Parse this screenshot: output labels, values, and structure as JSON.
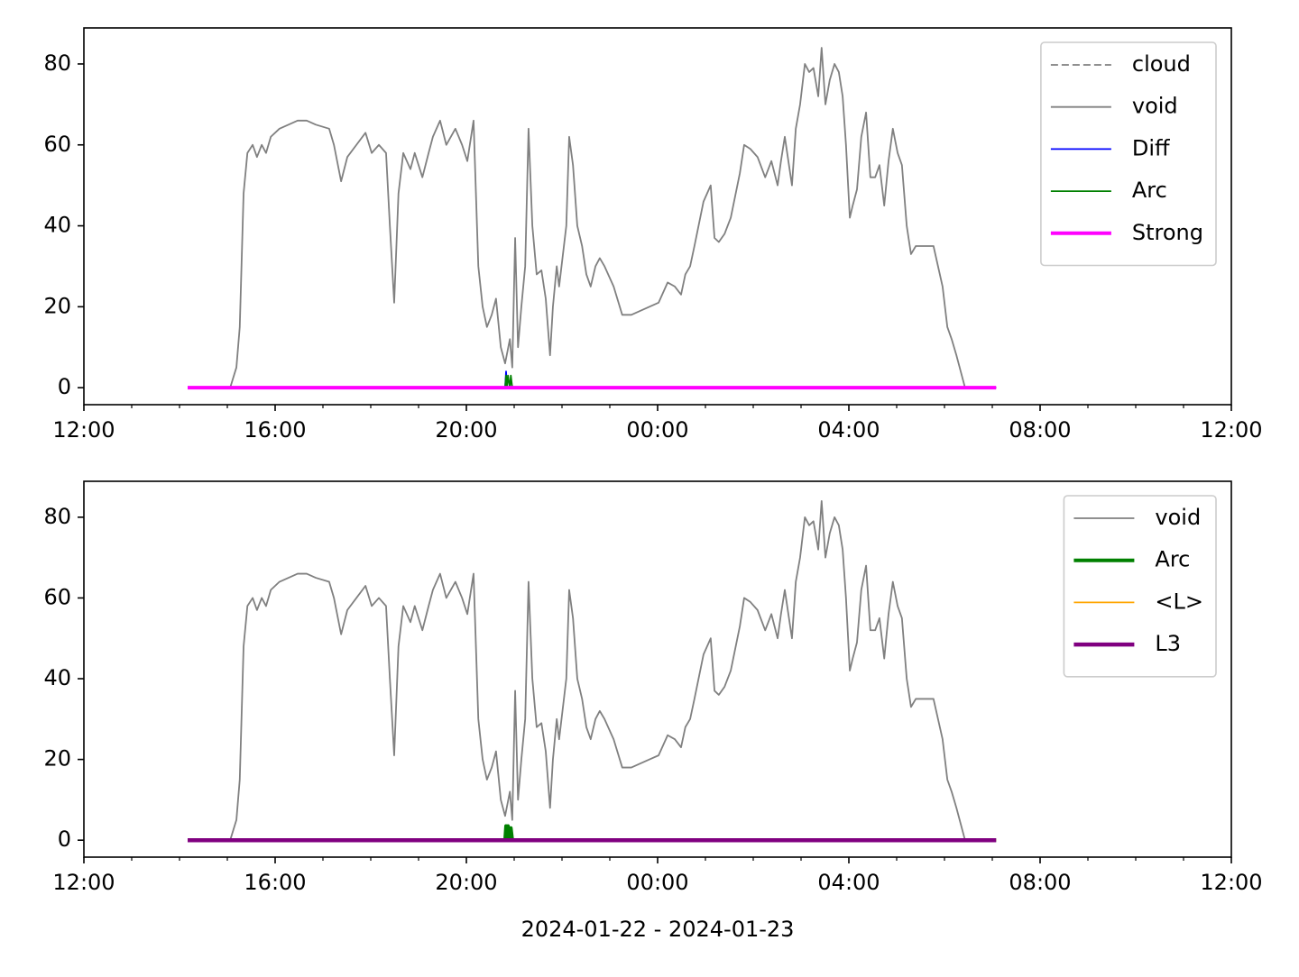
{
  "chart_data": [
    {
      "type": "line",
      "legend": "upper right",
      "xlim": [
        0,
        24
      ],
      "ylim": [
        -4.2,
        88.9
      ],
      "xticks": [
        {
          "value": 0,
          "label": "12:00"
        },
        {
          "value": 4,
          "label": "16:00"
        },
        {
          "value": 8,
          "label": "20:00"
        },
        {
          "value": 12,
          "label": "00:00"
        },
        {
          "value": 16,
          "label": "04:00"
        },
        {
          "value": 20,
          "label": "08:00"
        },
        {
          "value": 24,
          "label": "12:00"
        }
      ],
      "xminorticks": [
        1,
        2,
        3,
        5,
        6,
        7,
        9,
        10,
        11,
        13,
        14,
        15,
        17,
        18,
        19,
        21,
        22,
        23
      ],
      "yticks": [
        0,
        20,
        40,
        60,
        80
      ],
      "series": [
        {
          "name": "cloud",
          "color": "#808080",
          "dashed": true,
          "width": 1.8,
          "x": [],
          "values": []
        },
        {
          "name": "void",
          "color": "#808080",
          "width": 1.8,
          "x": [
            3.06,
            3.19,
            3.26,
            3.34,
            3.42,
            3.53,
            3.62,
            3.72,
            3.81,
            3.91,
            4.09,
            4.28,
            4.47,
            4.66,
            4.85,
            5.13,
            5.23,
            5.38,
            5.51,
            5.7,
            5.89,
            6.02,
            6.17,
            6.32,
            6.4,
            6.49,
            6.58,
            6.68,
            6.83,
            6.92,
            7.08,
            7.21,
            7.3,
            7.45,
            7.58,
            7.77,
            7.91,
            8.02,
            8.15,
            8.25,
            8.34,
            8.43,
            8.53,
            8.62,
            8.72,
            8.81,
            8.91,
            8.96,
            9.02,
            9.08,
            9.15,
            9.23,
            9.3,
            9.38,
            9.47,
            9.57,
            9.66,
            9.75,
            9.81,
            9.89,
            9.94,
            10.04,
            10.09,
            10.15,
            10.23,
            10.32,
            10.42,
            10.51,
            10.6,
            10.7,
            10.79,
            10.89,
            11.08,
            11.26,
            11.45,
            11.64,
            11.83,
            12.02,
            12.21,
            12.36,
            12.49,
            12.58,
            12.68,
            12.77,
            12.96,
            13.11,
            13.19,
            13.28,
            13.4,
            13.53,
            13.72,
            13.81,
            13.94,
            14.09,
            14.25,
            14.38,
            14.51,
            14.58,
            14.66,
            14.81,
            14.89,
            14.98,
            15.08,
            15.17,
            15.26,
            15.36,
            15.43,
            15.51,
            15.6,
            15.7,
            15.79,
            15.87,
            15.94,
            16.02,
            16.08,
            16.17,
            16.26,
            16.36,
            16.45,
            16.55,
            16.64,
            16.74,
            16.83,
            16.92,
            17.02,
            17.11,
            17.21,
            17.3,
            17.4,
            17.58,
            17.77,
            17.96,
            18.06,
            18.15,
            18.25,
            18.34,
            18.43
          ],
          "values": [
            0,
            5,
            15,
            48,
            58,
            60,
            57,
            60,
            58,
            62,
            64,
            65,
            66,
            66,
            65,
            64,
            60,
            51,
            57,
            60,
            63,
            58,
            60,
            58,
            40,
            21,
            48,
            58,
            54,
            58,
            52,
            58,
            62,
            66,
            60,
            64,
            60,
            56,
            66,
            30,
            20,
            15,
            18,
            22,
            10,
            6,
            12,
            5,
            37,
            10,
            20,
            30,
            64,
            40,
            28,
            29,
            22,
            8,
            20,
            30,
            25,
            35,
            40,
            62,
            55,
            40,
            35,
            28,
            25,
            30,
            32,
            30,
            25,
            18,
            18,
            19,
            20,
            21,
            26,
            25,
            23,
            28,
            30,
            35,
            46,
            50,
            37,
            36,
            38,
            42,
            53,
            60,
            59,
            57,
            52,
            56,
            50,
            56,
            62,
            50,
            64,
            70,
            80,
            78,
            79,
            72,
            84,
            70,
            76,
            80,
            78,
            72,
            60,
            42,
            45,
            49,
            62,
            68,
            52,
            52,
            55,
            45,
            56,
            64,
            58,
            55,
            40,
            33,
            35,
            35,
            35,
            25,
            15,
            12,
            8,
            4,
            0
          ]
        },
        {
          "name": "Diff",
          "color": "#0000ff",
          "width": 1.8,
          "x": [
            2.17,
            8.81,
            8.83,
            8.85,
            19.08
          ],
          "values": [
            0,
            0,
            4,
            0,
            0
          ]
        },
        {
          "name": "Arc",
          "color": "#008000",
          "width": 1.8,
          "x": [
            2.17,
            8.81,
            8.83,
            8.85,
            8.87,
            8.91,
            8.93,
            8.96,
            19.08
          ],
          "values": [
            0,
            0,
            3,
            0,
            3,
            0,
            3,
            0,
            0
          ]
        },
        {
          "name": "Strong",
          "color": "#ff00ff",
          "width": 4,
          "x": [
            2.17,
            19.08
          ],
          "values": [
            0,
            0
          ]
        }
      ]
    },
    {
      "type": "line",
      "legend": "upper right",
      "xlabel": "2024-01-22 - 2024-01-23",
      "xlim": [
        0,
        24
      ],
      "ylim": [
        -4.2,
        88.9
      ],
      "xticks": [
        {
          "value": 0,
          "label": "12:00"
        },
        {
          "value": 4,
          "label": "16:00"
        },
        {
          "value": 8,
          "label": "20:00"
        },
        {
          "value": 12,
          "label": "00:00"
        },
        {
          "value": 16,
          "label": "04:00"
        },
        {
          "value": 20,
          "label": "08:00"
        },
        {
          "value": 24,
          "label": "12:00"
        }
      ],
      "xminorticks": [
        1,
        2,
        3,
        5,
        6,
        7,
        9,
        10,
        11,
        13,
        14,
        15,
        17,
        18,
        19,
        21,
        22,
        23
      ],
      "yticks": [
        0,
        20,
        40,
        60,
        80
      ],
      "series": [
        {
          "name": "void",
          "color": "#808080",
          "width": 1.8,
          "x": [
            3.06,
            3.19,
            3.26,
            3.34,
            3.42,
            3.53,
            3.62,
            3.72,
            3.81,
            3.91,
            4.09,
            4.28,
            4.47,
            4.66,
            4.85,
            5.13,
            5.23,
            5.38,
            5.51,
            5.7,
            5.89,
            6.02,
            6.17,
            6.32,
            6.4,
            6.49,
            6.58,
            6.68,
            6.83,
            6.92,
            7.08,
            7.21,
            7.3,
            7.45,
            7.58,
            7.77,
            7.91,
            8.02,
            8.15,
            8.25,
            8.34,
            8.43,
            8.53,
            8.62,
            8.72,
            8.81,
            8.91,
            8.96,
            9.02,
            9.08,
            9.15,
            9.23,
            9.3,
            9.38,
            9.47,
            9.57,
            9.66,
            9.75,
            9.81,
            9.89,
            9.94,
            10.04,
            10.09,
            10.15,
            10.23,
            10.32,
            10.42,
            10.51,
            10.6,
            10.7,
            10.79,
            10.89,
            11.08,
            11.26,
            11.45,
            11.64,
            11.83,
            12.02,
            12.21,
            12.36,
            12.49,
            12.58,
            12.68,
            12.77,
            12.96,
            13.11,
            13.19,
            13.28,
            13.4,
            13.53,
            13.72,
            13.81,
            13.94,
            14.09,
            14.25,
            14.38,
            14.51,
            14.58,
            14.66,
            14.81,
            14.89,
            14.98,
            15.08,
            15.17,
            15.26,
            15.36,
            15.43,
            15.51,
            15.6,
            15.7,
            15.79,
            15.87,
            15.94,
            16.02,
            16.08,
            16.17,
            16.26,
            16.36,
            16.45,
            16.55,
            16.64,
            16.74,
            16.83,
            16.92,
            17.02,
            17.11,
            17.21,
            17.3,
            17.4,
            17.58,
            17.77,
            17.96,
            18.06,
            18.15,
            18.25,
            18.34,
            18.43
          ],
          "values": [
            0,
            5,
            15,
            48,
            58,
            60,
            57,
            60,
            58,
            62,
            64,
            65,
            66,
            66,
            65,
            64,
            60,
            51,
            57,
            60,
            63,
            58,
            60,
            58,
            40,
            21,
            48,
            58,
            54,
            58,
            52,
            58,
            62,
            66,
            60,
            64,
            60,
            56,
            66,
            30,
            20,
            15,
            18,
            22,
            10,
            6,
            12,
            5,
            37,
            10,
            20,
            30,
            64,
            40,
            28,
            29,
            22,
            8,
            20,
            30,
            25,
            35,
            40,
            62,
            55,
            40,
            35,
            28,
            25,
            30,
            32,
            30,
            25,
            18,
            18,
            19,
            20,
            21,
            26,
            25,
            23,
            28,
            30,
            35,
            46,
            50,
            37,
            36,
            38,
            42,
            53,
            60,
            59,
            57,
            52,
            56,
            50,
            56,
            62,
            50,
            64,
            70,
            80,
            78,
            79,
            72,
            84,
            70,
            76,
            80,
            78,
            72,
            60,
            42,
            45,
            49,
            62,
            68,
            52,
            52,
            55,
            45,
            56,
            64,
            58,
            55,
            40,
            33,
            35,
            35,
            35,
            25,
            15,
            12,
            8,
            4,
            0
          ]
        },
        {
          "name": "Arc",
          "color": "#008000",
          "width": 4,
          "x": [
            2.17,
            8.81,
            8.83,
            8.85,
            8.87,
            8.91,
            8.93,
            8.96,
            19.08
          ],
          "values": [
            0,
            0,
            3.5,
            0,
            3.5,
            0,
            3,
            0,
            0
          ]
        },
        {
          "name": "<L>",
          "color": "#ffa500",
          "width": 1.8,
          "x": [
            2.17,
            19.08
          ],
          "values": [
            0,
            0
          ]
        },
        {
          "name": "L3",
          "color": "#800080",
          "width": 4.5,
          "x": [
            2.17,
            19.08
          ],
          "values": [
            0,
            0
          ]
        }
      ]
    }
  ]
}
